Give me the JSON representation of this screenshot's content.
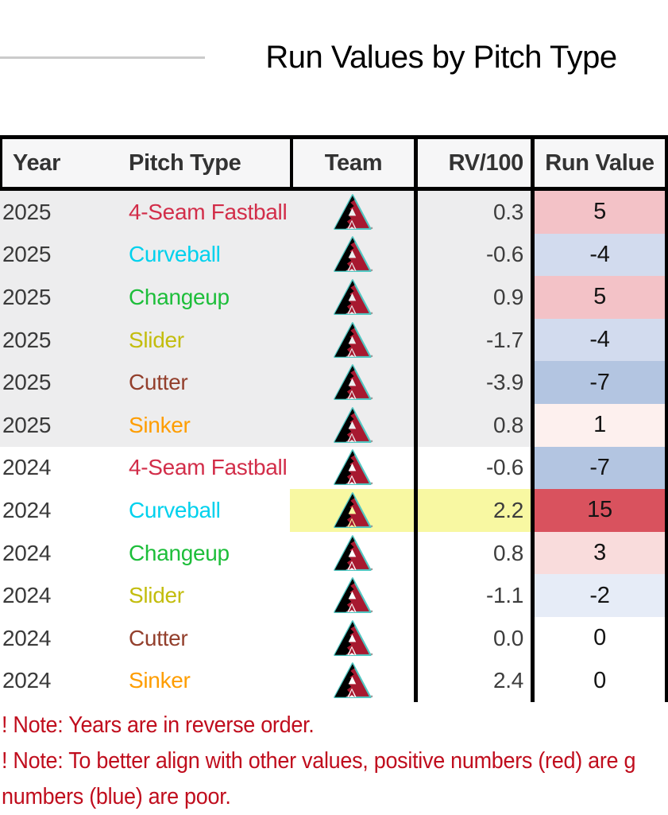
{
  "title": "Run Values by Pitch Type",
  "chart_data": {
    "type": "table",
    "title": "Run Values by Pitch Type",
    "columns": [
      "Year",
      "Pitch Type",
      "Team",
      "RV/100",
      "Run Value"
    ],
    "team": "Arizona Diamondbacks",
    "rows": [
      {
        "year": "2025",
        "pitch": "4-Seam Fastball",
        "pitch_color": "#d22d49",
        "rv100": "0.3",
        "run_value": "5",
        "run_value_bg": "#f3c2c7",
        "row_bg": "#ededee",
        "highlight": false
      },
      {
        "year": "2025",
        "pitch": "Curveball",
        "pitch_color": "#00d1ed",
        "rv100": "-0.6",
        "run_value": "-4",
        "run_value_bg": "#d2dbee",
        "row_bg": "#ededee",
        "highlight": false
      },
      {
        "year": "2025",
        "pitch": "Changeup",
        "pitch_color": "#1dbe3a",
        "rv100": "0.9",
        "run_value": "5",
        "run_value_bg": "#f3c2c7",
        "row_bg": "#ededee",
        "highlight": false
      },
      {
        "year": "2025",
        "pitch": "Slider",
        "pitch_color": "#c3bd0e",
        "rv100": "-1.7",
        "run_value": "-4",
        "run_value_bg": "#d2dbee",
        "row_bg": "#ededee",
        "highlight": false
      },
      {
        "year": "2025",
        "pitch": "Cutter",
        "pitch_color": "#933f2c",
        "rv100": "-3.9",
        "run_value": "-7",
        "run_value_bg": "#b3c5e1",
        "row_bg": "#ededee",
        "highlight": false
      },
      {
        "year": "2025",
        "pitch": "Sinker",
        "pitch_color": "#fe9d00",
        "rv100": "0.8",
        "run_value": "1",
        "run_value_bg": "#fdf0ee",
        "row_bg": "#ededee",
        "highlight": false
      },
      {
        "year": "2024",
        "pitch": "4-Seam Fastball",
        "pitch_color": "#d22d49",
        "rv100": "-0.6",
        "run_value": "-7",
        "run_value_bg": "#b3c5e1",
        "row_bg": "#ffffff",
        "highlight": false
      },
      {
        "year": "2024",
        "pitch": "Curveball",
        "pitch_color": "#00d1ed",
        "rv100": "2.2",
        "run_value": "15",
        "run_value_bg": "#d9525e",
        "row_bg": "#ffffff",
        "highlight": true
      },
      {
        "year": "2024",
        "pitch": "Changeup",
        "pitch_color": "#1dbe3a",
        "rv100": "0.8",
        "run_value": "3",
        "run_value_bg": "#f9dcdc",
        "row_bg": "#ffffff",
        "highlight": false
      },
      {
        "year": "2024",
        "pitch": "Slider",
        "pitch_color": "#c3bd0e",
        "rv100": "-1.1",
        "run_value": "-2",
        "run_value_bg": "#e6ecf7",
        "row_bg": "#ffffff",
        "highlight": false
      },
      {
        "year": "2024",
        "pitch": "Cutter",
        "pitch_color": "#933f2c",
        "rv100": "0.0",
        "run_value": "0",
        "run_value_bg": "#ffffff",
        "row_bg": "#ffffff",
        "highlight": false
      },
      {
        "year": "2024",
        "pitch": "Sinker",
        "pitch_color": "#fe9d00",
        "rv100": "2.4",
        "run_value": "0",
        "run_value_bg": "#ffffff",
        "row_bg": "#ffffff",
        "highlight": false
      }
    ]
  },
  "notes": {
    "color": "#c00d1d",
    "lines": [
      "! Note: Years are in reverse order.",
      "! Note: To better align with other values, positive numbers (red) are g",
      "numbers (blue) are poor."
    ]
  },
  "colors": {
    "highlight_yellow": "#f8f8a2",
    "header_bg": "#f6f6f7",
    "row_gray": "#ededee",
    "logo_red": "#a71930",
    "logo_teal": "#52c7c2",
    "border_black": "#000000"
  }
}
